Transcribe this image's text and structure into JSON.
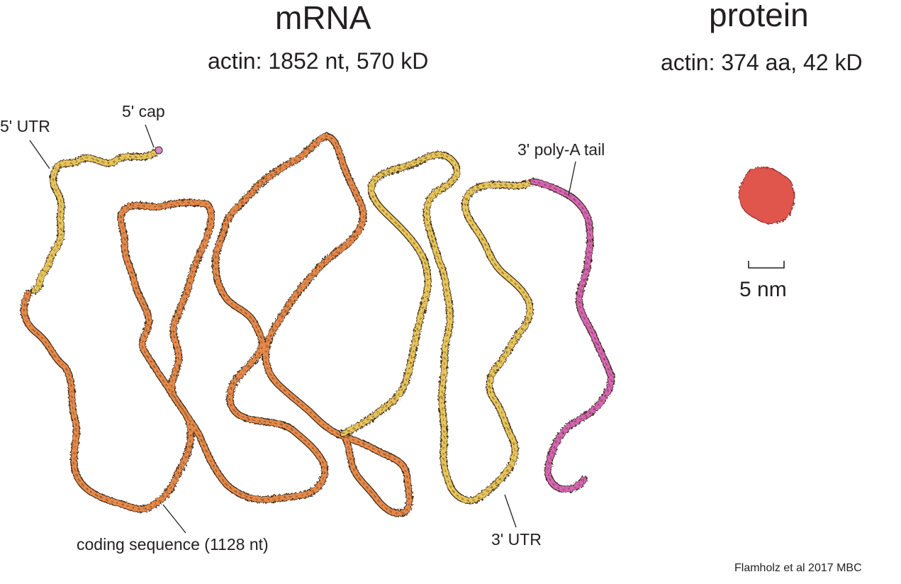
{
  "mrna_panel": {
    "title": "mRNA",
    "subtitle": "actin: 1852 nt, 570 kD",
    "labels": {
      "utr5": "5' UTR",
      "cap5": "5' cap",
      "polya": "3' poly-A tail",
      "coding": "coding sequence (1128 nt)",
      "utr3": "3' UTR"
    }
  },
  "protein_panel": {
    "title": "protein",
    "subtitle": "actin: 374 aa, 42 kD",
    "scale_label": "5 nm"
  },
  "credit": "Flamholz et al 2017 MBC",
  "colors": {
    "utr": "#e9c65a",
    "coding": "#e7894a",
    "polya": "#d765b4",
    "cap": "#d98ad2",
    "protein": "#e0574e",
    "outline": "#3a2a1a",
    "leader": "#231f20"
  }
}
